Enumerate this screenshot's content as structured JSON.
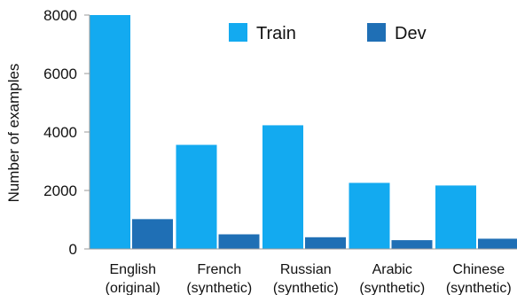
{
  "chart_data": {
    "type": "bar",
    "title": "",
    "xlabel": "",
    "ylabel": "Number of examples",
    "ylim": [
      0,
      8000
    ],
    "yticks": [
      0,
      2000,
      4000,
      6000,
      8000
    ],
    "grid": false,
    "legend_position": "top",
    "categories": [
      [
        "English",
        "(original)"
      ],
      [
        "French",
        "(synthetic)"
      ],
      [
        "Russian",
        "(synthetic)"
      ],
      [
        "Arabic",
        "(synthetic)"
      ],
      [
        "Chinese",
        "(synthetic)"
      ]
    ],
    "series": [
      {
        "name": "Train",
        "color": "#13aaf0",
        "values": [
          8000,
          3560,
          4230,
          2260,
          2170
        ]
      },
      {
        "name": "Dev",
        "color": "#1f6fb5",
        "values": [
          1020,
          500,
          400,
          300,
          350
        ]
      }
    ]
  }
}
